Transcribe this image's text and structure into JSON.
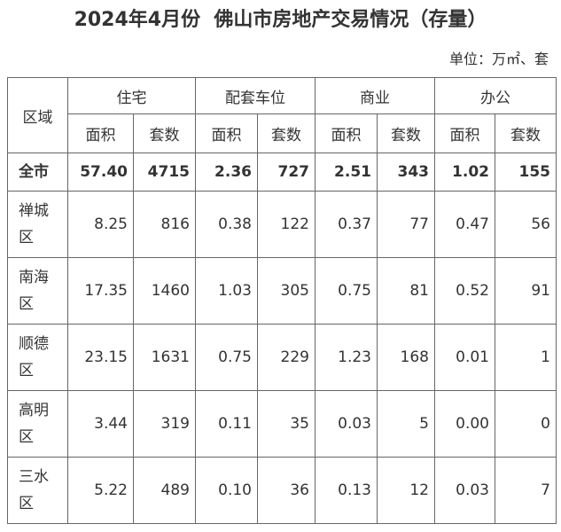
{
  "title": "2024年4月份  佛山市房地产交易情况（存量）",
  "unit": "单位：万㎡、套",
  "table": {
    "region_header": "区域",
    "groups": [
      "住宅",
      "配套车位",
      "商业",
      "办公"
    ],
    "subheaders": [
      "面积",
      "套数",
      "面积",
      "套数",
      "面积",
      "套数",
      "面积",
      "套数"
    ],
    "rows": [
      [
        "全市",
        "57.40",
        "4715",
        "2.36",
        "727",
        "2.51",
        "343",
        "1.02",
        "155"
      ],
      [
        "禅城区",
        "8.25",
        "816",
        "0.38",
        "122",
        "0.37",
        "77",
        "0.47",
        "56"
      ],
      [
        "南海区",
        "17.35",
        "1460",
        "1.03",
        "305",
        "0.75",
        "81",
        "0.52",
        "91"
      ],
      [
        "顺德区",
        "23.15",
        "1631",
        "0.75",
        "229",
        "1.23",
        "168",
        "0.01",
        "1"
      ],
      [
        "高明区",
        "3.44",
        "319",
        "0.11",
        "35",
        "0.03",
        "5",
        "0.00",
        "0"
      ],
      [
        "三水区",
        "5.22",
        "489",
        "0.10",
        "36",
        "0.13",
        "12",
        "0.03",
        "7"
      ]
    ]
  }
}
